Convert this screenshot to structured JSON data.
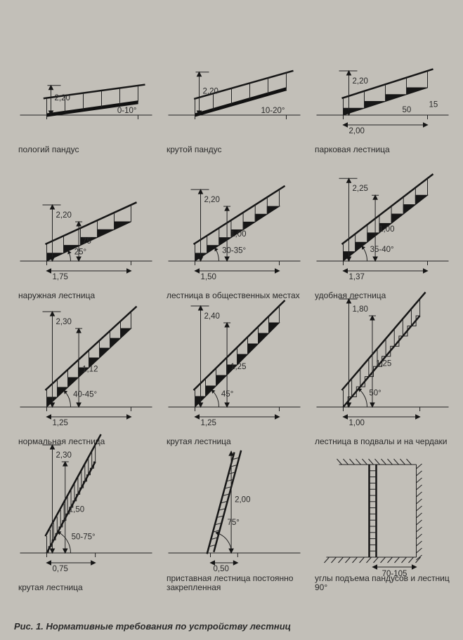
{
  "figure_caption": "Рис. 1. Нормативные требования по устройству лестниц",
  "common": {
    "stroke_color": "#161616",
    "bg_color": "#c2bfb8",
    "font_family": "Arial",
    "label_fontsize": 11.5,
    "caption_fontsize": 12
  },
  "cells": [
    {
      "id": "ramp-shallow",
      "caption": "пологий пандус",
      "height_label": "2,20",
      "angle_label": "0-10°",
      "angle_deg": 8,
      "is_ramp": true
    },
    {
      "id": "ramp-steep",
      "caption": "крутой пандус",
      "height_label": "2,20",
      "angle_label": "10-20°",
      "angle_deg": 16,
      "is_ramp": true
    },
    {
      "id": "park-stair",
      "caption": "парковая лестница",
      "height_label": "2,20",
      "base_label": "2,00",
      "angle_deg": 18,
      "steps": 4,
      "tread_label": "50",
      "riser_label": "15"
    },
    {
      "id": "exterior-stair",
      "caption": "наружная лестница",
      "height_label": "2,20",
      "rise_label": "75",
      "base_label": "1,75",
      "angle_label": "25°",
      "angle_deg": 25,
      "steps": 5
    },
    {
      "id": "public-stair",
      "caption": "лестница в общественных местах",
      "height_label": "2,20",
      "rise_label": "1,00",
      "base_label": "1,50",
      "angle_label": "30-35°",
      "angle_deg": 33,
      "steps": 7
    },
    {
      "id": "comfortable-stair",
      "caption": "удобная лестница",
      "height_label": "2,25",
      "rise_label": "1,00",
      "base_label": "1,37",
      "angle_label": "35-40°",
      "angle_deg": 38,
      "steps": 7
    },
    {
      "id": "normal-stair",
      "caption": "нормальная лестница",
      "height_label": "2,30",
      "rise_label": "1,12",
      "base_label": "1,25",
      "angle_label": "40-45°",
      "angle_deg": 43,
      "steps": 8
    },
    {
      "id": "steep-stair",
      "caption": "крутая лестница",
      "height_label": "2,40",
      "rise_label": "1,25",
      "base_label": "1,25",
      "angle_label": "45°",
      "angle_deg": 45,
      "steps": 8
    },
    {
      "id": "basement-attic",
      "caption": "лестница в подвалы и на чердаки",
      "height_label": "1,80",
      "rise_label": "1,25",
      "base_label": "1,00",
      "angle_label": "50°",
      "angle_deg": 50,
      "steps": 9,
      "thin_steps": true
    },
    {
      "id": "very-steep-stair",
      "caption": "крутая лестница",
      "height_label": "2,30",
      "rise_label": "1,50",
      "base_label": "0,75",
      "angle_label": "50-75°",
      "angle_deg": 62,
      "steps": 14,
      "thin_steps": true
    },
    {
      "id": "fixed-ladder",
      "caption": "приставная лестница постоянно закрепленная",
      "rise_label": "2,00",
      "base_label": "0,50",
      "angle_label": "75°",
      "angle_deg": 75,
      "ladder": true
    },
    {
      "id": "vertical-ladder",
      "caption": "углы подъема пандусов и лестниц 90°",
      "base_label": "70-105",
      "angle_deg": 90,
      "vertical": true
    }
  ]
}
